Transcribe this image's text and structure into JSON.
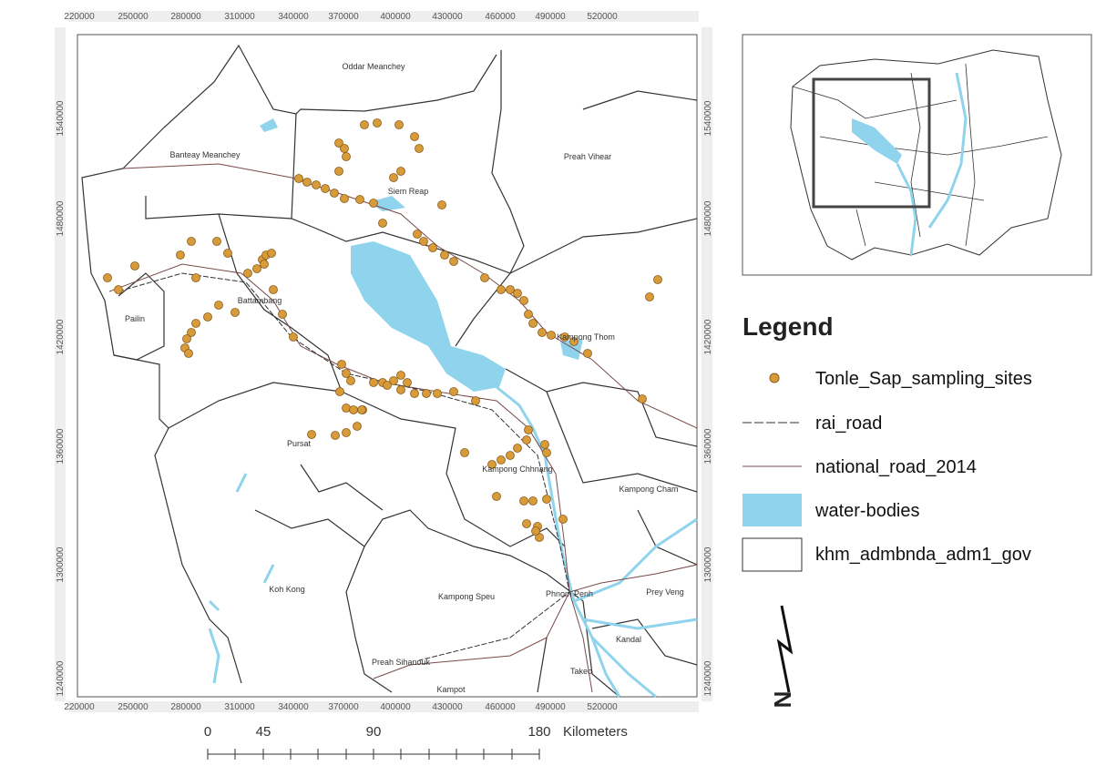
{
  "map": {
    "x_ticks": [
      220000,
      250000,
      280000,
      310000,
      340000,
      370000,
      400000,
      430000,
      460000,
      490000,
      520000
    ],
    "y_ticks": [
      1540000,
      1480000,
      1420000,
      1360000,
      1300000,
      1240000
    ],
    "provinces": [
      "Oddar Meanchey",
      "Banteay Meanchey",
      "Preah Vihear",
      "Siem Reap",
      "Battambang",
      "Pailin",
      "Kampong Thom",
      "Pursat",
      "Kampong Chhnang",
      "Kampong Cham",
      "Koh Kong",
      "Kampong Speu",
      "Phnom Penh",
      "Prey Veng",
      "Kandal",
      "Preah Sihanouk",
      "Takeo",
      "Kampot"
    ],
    "legend": {
      "title": "Legend",
      "items": [
        "Tonle_Sap_sampling_sites",
        "rai_road",
        "national_road_2014",
        "water-bodies",
        "khm_admbnda_adm1_gov"
      ]
    },
    "scale_bar": {
      "labels": [
        0,
        45,
        90,
        180
      ],
      "unit": "Kilometers"
    },
    "north": "N"
  }
}
